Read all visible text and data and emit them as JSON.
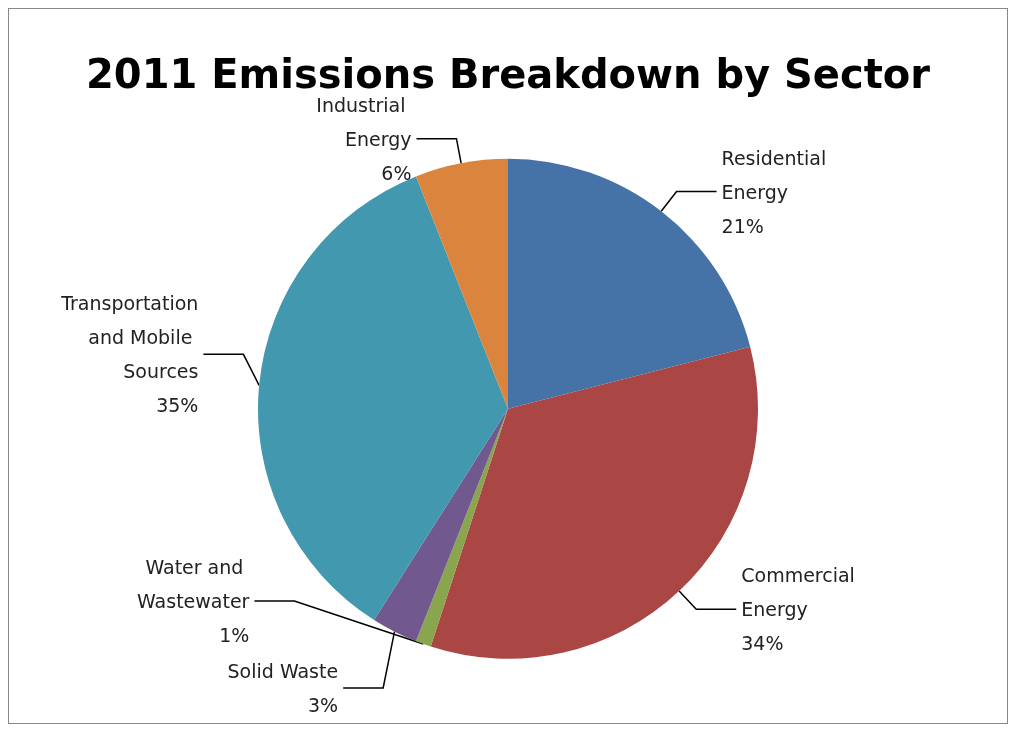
{
  "chart_data": {
    "type": "pie",
    "title": "2011 Emissions Breakdown by Sector",
    "categories": [
      "Residential Energy",
      "Commercial Energy",
      "Water and Wastewater",
      "Solid Waste",
      "Transportation and Mobile Sources",
      "Industrial Energy"
    ],
    "values": [
      21,
      34,
      1,
      3,
      35,
      6
    ],
    "colors": [
      "#4572a7",
      "#aa4643",
      "#89a54e",
      "#71588f",
      "#4198af",
      "#db843d"
    ],
    "value_labels": [
      "21%",
      "34%",
      "1%",
      "3%",
      "35%",
      "6%"
    ],
    "legend": false
  }
}
